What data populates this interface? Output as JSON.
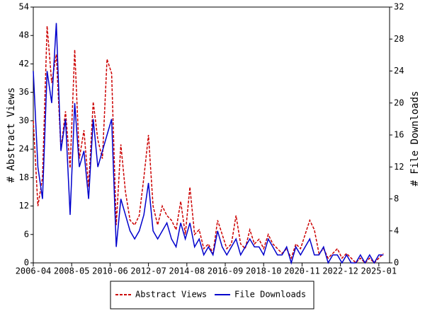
{
  "chart_data": {
    "type": "line",
    "y_label": "# Abstract Views",
    "y2_label": "# File Downloads",
    "x": [
      "2006-04",
      "2006-07",
      "2006-10",
      "2007-01",
      "2007-04",
      "2007-07",
      "2007-10",
      "2008-01",
      "2008-04",
      "2008-07",
      "2008-10",
      "2009-01",
      "2009-04",
      "2009-07",
      "2009-10",
      "2010-01",
      "2010-04",
      "2010-07",
      "2010-10",
      "2011-01",
      "2011-04",
      "2011-07",
      "2011-10",
      "2012-01",
      "2012-04",
      "2012-07",
      "2012-10",
      "2013-01",
      "2013-04",
      "2013-07",
      "2013-10",
      "2014-01",
      "2014-04",
      "2014-07",
      "2014-10",
      "2015-01",
      "2015-04",
      "2015-07",
      "2015-10",
      "2016-01",
      "2016-04",
      "2016-07",
      "2016-10",
      "2017-01",
      "2017-04",
      "2017-07",
      "2017-10",
      "2018-01",
      "2018-04",
      "2018-07",
      "2018-10",
      "2019-01",
      "2019-04",
      "2019-07",
      "2019-10",
      "2020-01",
      "2020-04",
      "2020-07",
      "2020-10",
      "2021-01",
      "2021-04",
      "2021-07",
      "2021-10",
      "2022-01",
      "2022-04",
      "2022-07",
      "2022-10",
      "2023-01",
      "2023-04",
      "2023-07",
      "2023-10",
      "2024-01",
      "2024-04",
      "2024-07",
      "2024-10",
      "2025-01",
      "2025-04"
    ],
    "series": [
      {
        "name": "Abstract Views",
        "color": "#cc0000",
        "dashed": true,
        "axis": "y",
        "values": [
          30,
          12,
          18,
          50,
          38,
          44,
          24,
          32,
          20,
          45,
          22,
          28,
          16,
          34,
          26,
          22,
          43,
          40,
          8,
          25,
          15,
          9,
          8,
          10,
          18,
          27,
          12,
          8,
          12,
          10,
          9,
          7,
          13,
          6,
          16,
          6,
          7,
          3,
          4,
          2,
          9,
          6,
          3,
          4,
          10,
          4,
          3,
          7,
          4,
          5,
          3,
          6,
          4,
          3,
          2,
          3,
          1,
          4,
          3,
          6,
          9,
          7,
          2,
          3,
          1,
          2,
          3,
          1,
          2,
          1,
          0,
          1,
          0,
          1,
          0,
          1,
          2
        ]
      },
      {
        "name": "File Downloads",
        "color": "#0000cc",
        "dashed": false,
        "axis": "y2",
        "values": [
          24,
          12,
          8,
          24,
          20,
          30,
          14,
          18,
          6,
          20,
          12,
          14,
          8,
          18,
          12,
          14,
          16,
          18,
          2,
          8,
          6,
          4,
          3,
          4,
          6,
          10,
          4,
          3,
          4,
          5,
          3,
          2,
          5,
          3,
          5,
          2,
          3,
          1,
          2,
          1,
          4,
          2,
          1,
          2,
          3,
          1,
          2,
          3,
          2,
          2,
          1,
          3,
          2,
          1,
          1,
          2,
          0,
          2,
          1,
          2,
          3,
          1,
          1,
          2,
          0,
          1,
          1,
          0,
          1,
          0,
          0,
          1,
          0,
          1,
          0,
          1,
          1
        ]
      }
    ],
    "xlim": [
      "2006-04",
      "2025-08"
    ],
    "xticks": [
      "2006-04",
      "2008-05",
      "2010-06",
      "2012-07",
      "2014-08",
      "2016-09",
      "2018-10",
      "2020-11",
      "2022-12",
      "2025-01"
    ],
    "ylim": [
      0,
      54
    ],
    "yticks": [
      0,
      6,
      12,
      18,
      24,
      30,
      36,
      42,
      48,
      54
    ],
    "y2lim": [
      0,
      32
    ],
    "y2ticks": [
      0,
      4,
      8,
      12,
      16,
      20,
      24,
      28,
      32
    ],
    "legend": "bottom"
  }
}
